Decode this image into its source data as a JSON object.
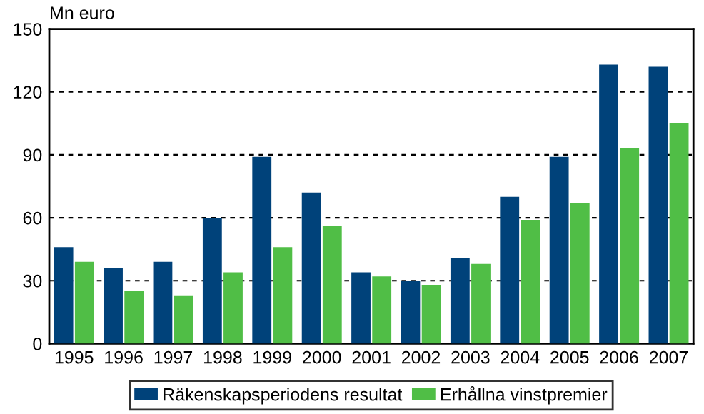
{
  "chart_data": {
    "type": "bar",
    "ylabel": "Mn euro",
    "categories": [
      "1995",
      "1996",
      "1997",
      "1998",
      "1999",
      "2000",
      "2001",
      "2002",
      "2003",
      "2004",
      "2005",
      "2006",
      "2007"
    ],
    "series": [
      {
        "name": "Räkenskapsperiodens resultat",
        "color": "#00427a",
        "values": [
          46,
          36,
          39,
          60,
          89,
          72,
          34,
          30,
          41,
          70,
          89,
          133,
          132
        ]
      },
      {
        "name": "Erhållna vinstpremier",
        "color": "#50be46",
        "values": [
          39,
          25,
          23,
          34,
          46,
          56,
          32,
          28,
          38,
          59,
          67,
          93,
          105
        ]
      }
    ],
    "ylim": [
      0,
      150
    ],
    "yticks": [
      0,
      30,
      60,
      90,
      120,
      150
    ],
    "grid": "y",
    "legend": "bottom"
  }
}
